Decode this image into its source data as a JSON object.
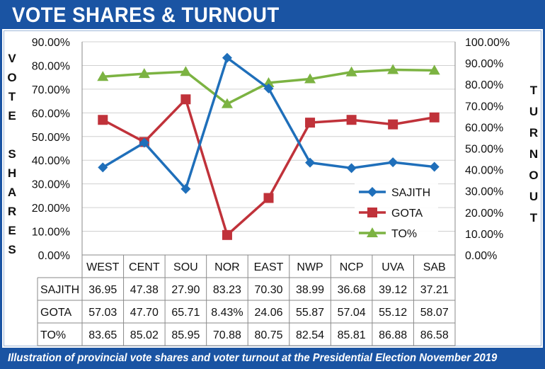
{
  "header": {
    "title": "VOTE SHARES & TURNOUT"
  },
  "caption": "Illustration of provincial vote shares and voter turnout at the Presidential Election November 2019",
  "left_axis_letters": [
    "V",
    "O",
    "T",
    "E",
    "",
    "S",
    "H",
    "A",
    "R",
    "E",
    "S"
  ],
  "right_axis_letters": [
    "T",
    "U",
    "R",
    "N",
    "O",
    "U",
    "T"
  ],
  "colors": {
    "frame": "#1a54a3",
    "sajith": "#1f6fba",
    "gota": "#c0323a",
    "to": "#7cb342",
    "grid": "#d0d0d0",
    "table_border": "#8a8a8a"
  },
  "chart_data": {
    "type": "line",
    "title": "VOTE SHARES & TURNOUT",
    "categories": [
      "WEST",
      "CENT",
      "SOU",
      "NOR",
      "EAST",
      "NWP",
      "NCP",
      "UVA",
      "SAB"
    ],
    "series": [
      {
        "name": "SAJITH",
        "axis": "left",
        "marker": "diamond",
        "color": "#1f6fba",
        "values": [
          36.95,
          47.38,
          27.9,
          83.23,
          70.3,
          38.99,
          36.68,
          39.12,
          37.21
        ],
        "table_labels": [
          "36.95",
          "47.38",
          "27.90",
          "83.23",
          "70.30",
          "38.99",
          "36.68",
          "39.12",
          "37.21"
        ]
      },
      {
        "name": "GOTA",
        "axis": "left",
        "marker": "square",
        "color": "#c0323a",
        "values": [
          57.03,
          47.7,
          65.71,
          8.43,
          24.06,
          55.87,
          57.04,
          55.12,
          58.07
        ],
        "table_labels": [
          "57.03",
          "47.70",
          "65.71",
          "8.43%",
          "24.06",
          "55.87",
          "57.04",
          "55.12",
          "58.07"
        ]
      },
      {
        "name": "TO%",
        "axis": "right",
        "marker": "triangle",
        "color": "#7cb342",
        "values": [
          83.65,
          85.02,
          85.95,
          70.88,
          80.75,
          82.54,
          85.81,
          86.88,
          86.58
        ],
        "table_labels": [
          "83.65",
          "85.02",
          "85.95",
          "70.88",
          "80.75",
          "82.54",
          "85.81",
          "86.88",
          "86.58"
        ]
      }
    ],
    "left_axis": {
      "ylim": [
        0,
        90
      ],
      "step": 10,
      "tick_labels": [
        "0.00%",
        "10.00%",
        "20.00%",
        "30.00%",
        "40.00%",
        "50.00%",
        "60.00%",
        "70.00%",
        "80.00%",
        "90.00%"
      ]
    },
    "right_axis": {
      "ylim": [
        0,
        100
      ],
      "step": 10,
      "tick_labels": [
        "0.00%",
        "10.00%",
        "20.00%",
        "30.00%",
        "40.00%",
        "50.00%",
        "60.00%",
        "70.00%",
        "80.00%",
        "90.00%",
        "100.00%"
      ]
    },
    "grid": true,
    "legend": "right, inside plot lower area",
    "data_table": true
  }
}
